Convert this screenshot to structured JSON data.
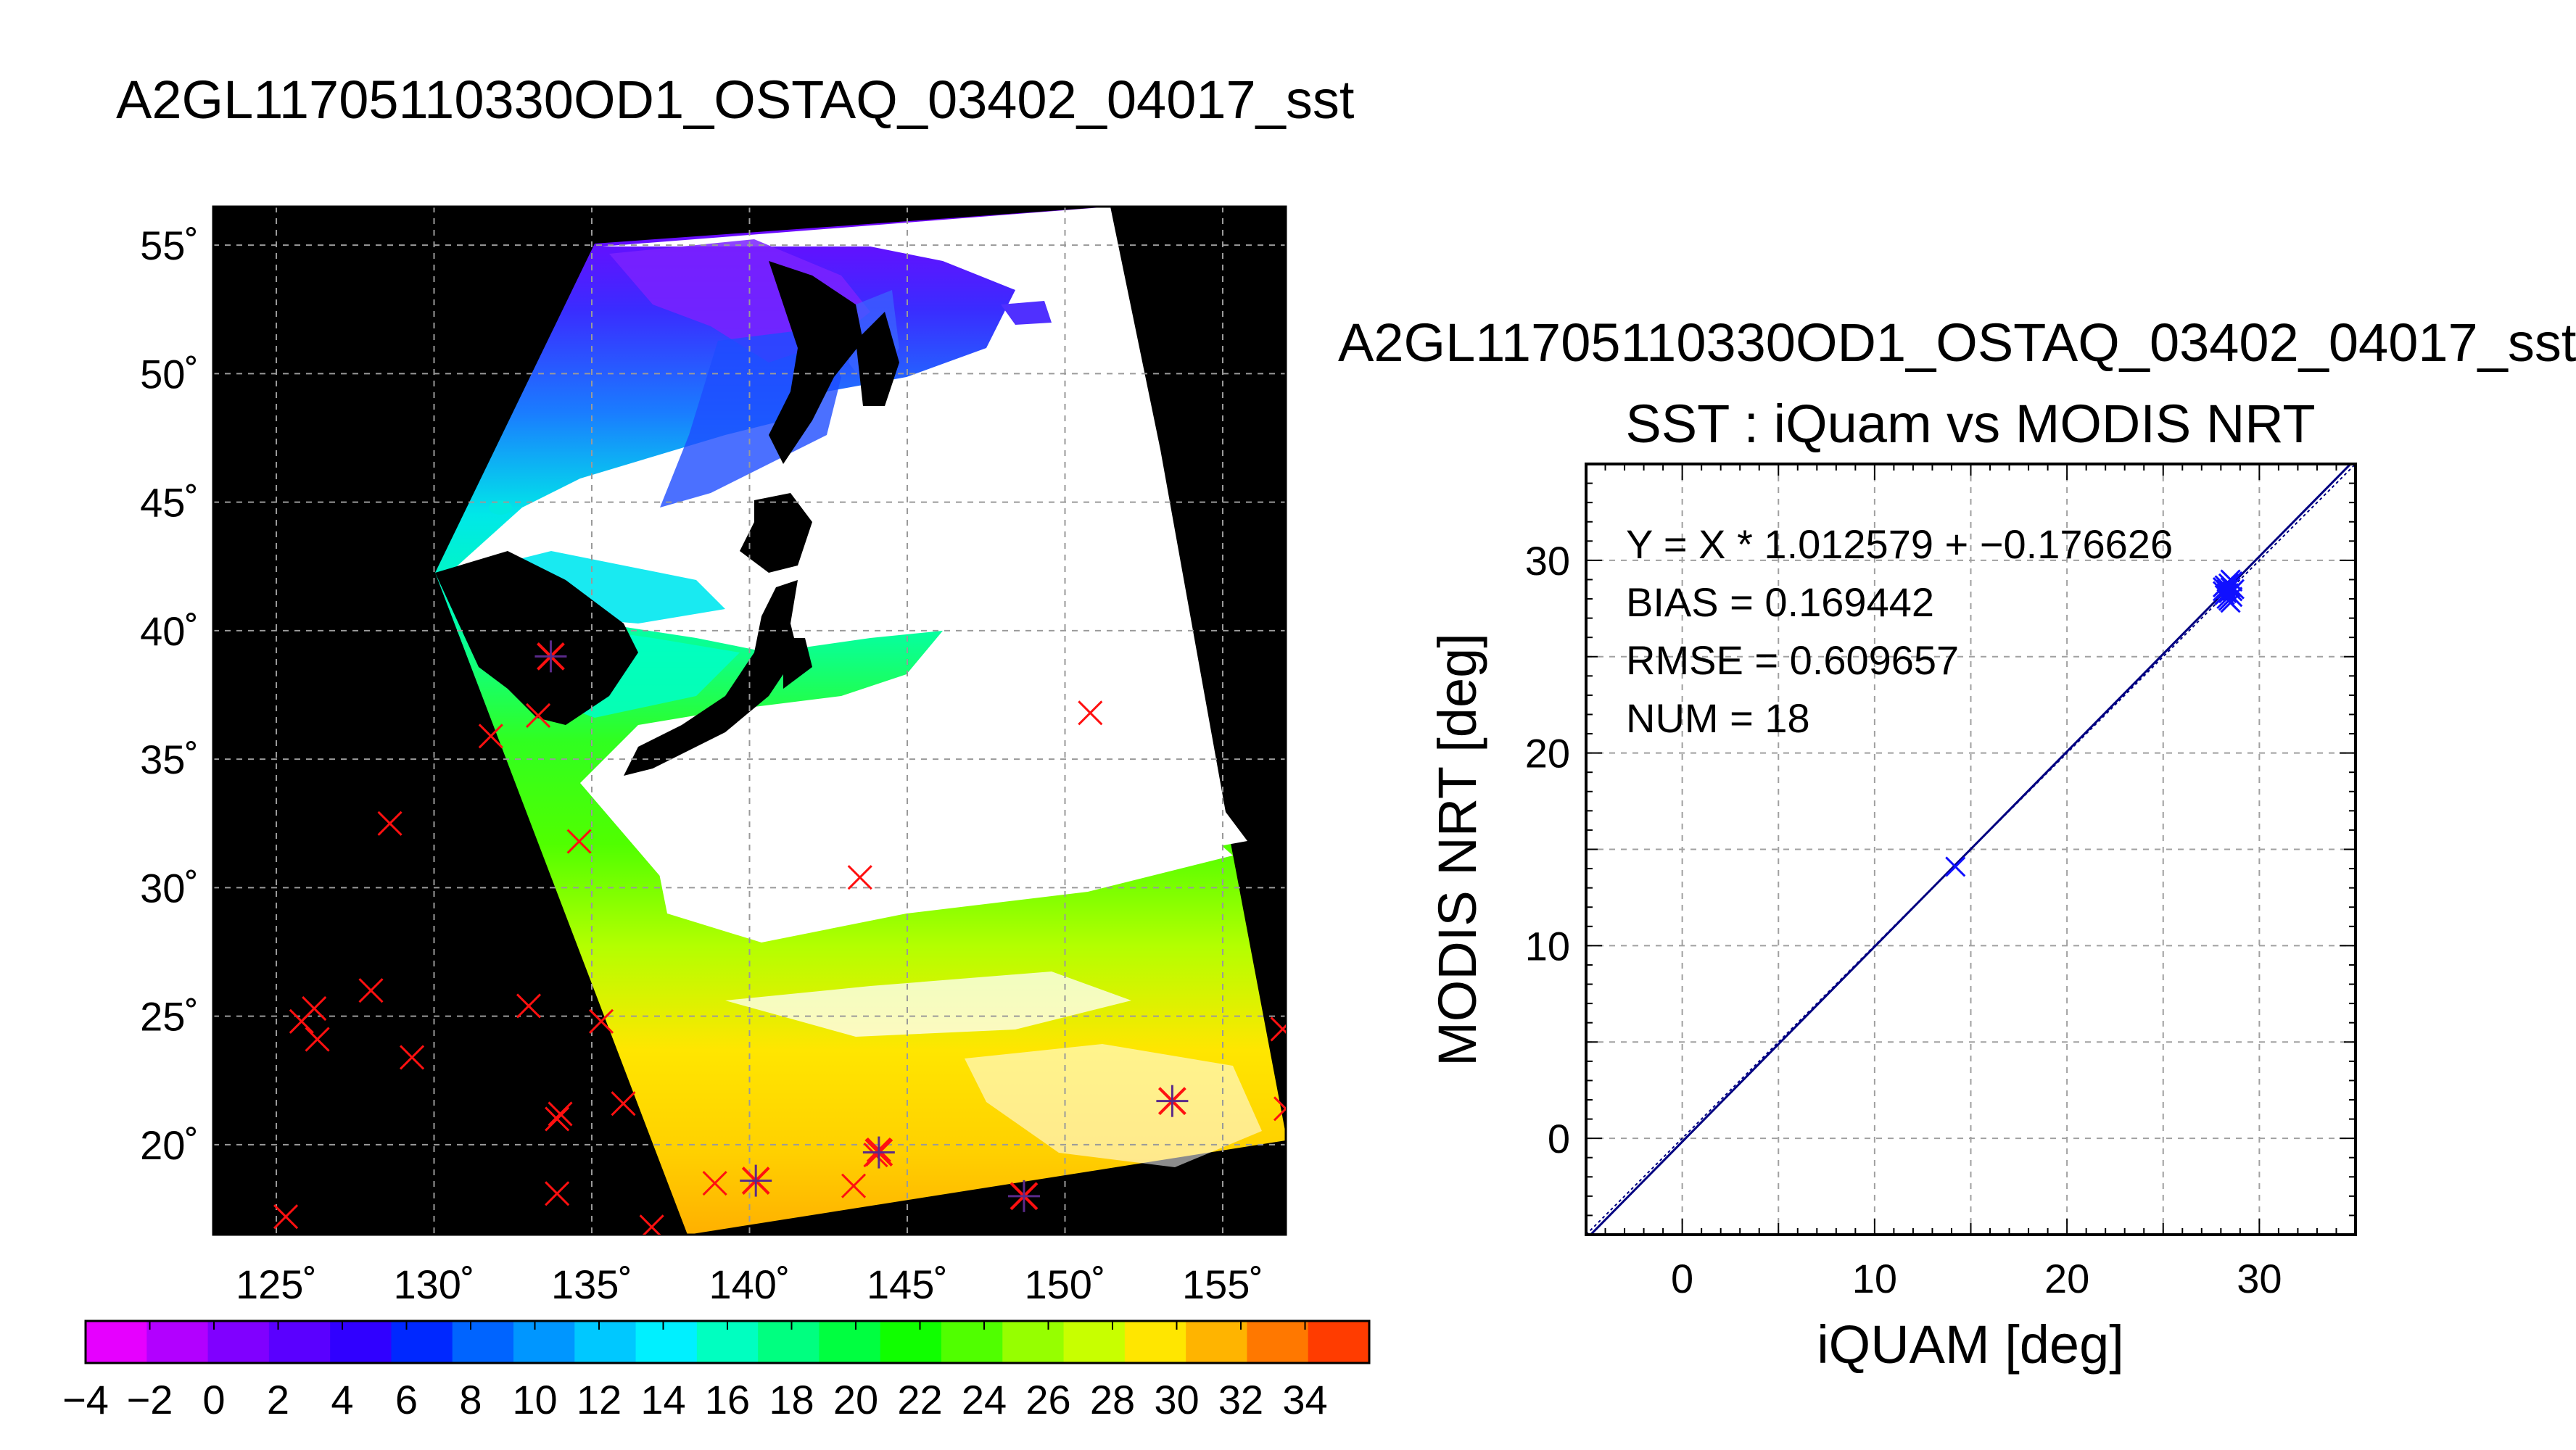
{
  "figure": {
    "title": "A2GL11705110330OD1_OSTAQ_03402_04017_sst"
  },
  "map": {
    "lon_ticks": [
      "125˚",
      "130˚",
      "135˚",
      "140˚",
      "145˚",
      "150˚",
      "155˚"
    ],
    "lat_ticks": [
      "55˚",
      "50˚",
      "45˚",
      "40˚",
      "35˚",
      "30˚",
      "25˚",
      "20˚"
    ],
    "colors": {
      "background": "#000000",
      "cloud": "#ffffff",
      "land": "#000000",
      "grid": "#9a9a9a",
      "insitu_marker": "#ff1010",
      "matchup_marker": "#3030ff"
    }
  },
  "colorbar": {
    "tick_labels": [
      "−4",
      "−2",
      "0",
      "2",
      "4",
      "6",
      "8",
      "10",
      "12",
      "14",
      "16",
      "18",
      "20",
      "22",
      "24",
      "26",
      "28",
      "30",
      "32",
      "34"
    ],
    "colors": [
      "#e600ff",
      "#b200ff",
      "#8000ff",
      "#5a00ff",
      "#3000ff",
      "#0028ff",
      "#0064ff",
      "#0096ff",
      "#00c8ff",
      "#00f0ff",
      "#00ffc0",
      "#00ff80",
      "#00ff40",
      "#10ff00",
      "#50ff00",
      "#96ff00",
      "#c8ff00",
      "#ffe600",
      "#ffb400",
      "#ff7800",
      "#ff3c00"
    ]
  },
  "scatter": {
    "file_title": "A2GL11705110330OD1_OSTAQ_03402_04017_sst",
    "stats": [
      "Y = X * 1.012579 + −0.176626",
      "BIAS = 0.169442",
      "RMSE = 0.609657",
      "NUM = 18"
    ],
    "colors": {
      "points": "#1010ff",
      "fit_line": "#000080"
    }
  },
  "chart_data": [
    {
      "type": "heatmap",
      "title": "",
      "xlabel": "",
      "ylabel": "",
      "xlim": [
        123,
        157
      ],
      "ylim": [
        16.5,
        56.5
      ],
      "colorbar_range": [
        -4,
        36
      ],
      "grid": true,
      "insitu_points": [
        {
          "lon": 125.3,
          "lat": 17.2
        },
        {
          "lon": 125.8,
          "lat": 24.8
        },
        {
          "lon": 126.2,
          "lat": 25.3
        },
        {
          "lon": 126.3,
          "lat": 24.1
        },
        {
          "lon": 128.0,
          "lat": 26.0
        },
        {
          "lon": 128.6,
          "lat": 32.5
        },
        {
          "lon": 129.3,
          "lat": 23.4
        },
        {
          "lon": 131.8,
          "lat": 35.9
        },
        {
          "lon": 133.0,
          "lat": 25.4
        },
        {
          "lon": 133.3,
          "lat": 36.7
        },
        {
          "lon": 134.0,
          "lat": 21.2
        },
        {
          "lon": 133.9,
          "lat": 21.0
        },
        {
          "lon": 133.9,
          "lat": 18.1
        },
        {
          "lon": 134.6,
          "lat": 31.8
        },
        {
          "lon": 135.3,
          "lat": 24.8
        },
        {
          "lon": 136.0,
          "lat": 21.6
        },
        {
          "lon": 136.9,
          "lat": 16.8
        },
        {
          "lon": 138.9,
          "lat": 18.5
        },
        {
          "lon": 140.2,
          "lat": 18.6
        },
        {
          "lon": 143.3,
          "lat": 18.4
        },
        {
          "lon": 143.5,
          "lat": 30.4
        },
        {
          "lon": 144.0,
          "lat": 19.6
        },
        {
          "lon": 144.1,
          "lat": 19.8
        },
        {
          "lon": 148.7,
          "lat": 18.0
        },
        {
          "lon": 150.8,
          "lat": 36.8
        },
        {
          "lon": 153.4,
          "lat": 21.7
        },
        {
          "lon": 156.9,
          "lat": 24.5
        },
        {
          "lon": 157.0,
          "lat": 21.4
        }
      ],
      "matchup_points": [
        {
          "lon": 133.7,
          "lat": 39.0
        },
        {
          "lon": 140.2,
          "lat": 18.6
        },
        {
          "lon": 144.1,
          "lat": 19.7
        },
        {
          "lon": 148.7,
          "lat": 18.0
        },
        {
          "lon": 153.4,
          "lat": 21.7
        }
      ]
    },
    {
      "type": "scatter",
      "title": "SST : iQuam vs MODIS NRT",
      "xlabel": "iQUAM [deg]",
      "ylabel": "MODIS NRT [deg]",
      "xlim": [
        -5,
        35
      ],
      "ylim": [
        -5,
        35
      ],
      "x_ticks": [
        0,
        10,
        20,
        30
      ],
      "y_ticks": [
        0,
        10,
        20,
        30
      ],
      "grid": true,
      "points": [
        {
          "x": 14.2,
          "y": 14.1
        },
        {
          "x": 28.1,
          "y": 28.4
        },
        {
          "x": 28.2,
          "y": 28.7
        },
        {
          "x": 28.3,
          "y": 28.5
        },
        {
          "x": 28.4,
          "y": 28.3
        },
        {
          "x": 28.5,
          "y": 28.6
        },
        {
          "x": 28.2,
          "y": 28.2
        },
        {
          "x": 28.6,
          "y": 28.9
        },
        {
          "x": 28.3,
          "y": 28.0
        },
        {
          "x": 28.4,
          "y": 27.9
        },
        {
          "x": 28.5,
          "y": 27.8
        },
        {
          "x": 28.6,
          "y": 28.1
        },
        {
          "x": 28.7,
          "y": 28.5
        },
        {
          "x": 28.1,
          "y": 28.6
        },
        {
          "x": 28.5,
          "y": 29.0
        },
        {
          "x": 28.4,
          "y": 28.8
        },
        {
          "x": 28.3,
          "y": 28.3
        },
        {
          "x": 28.6,
          "y": 28.4
        }
      ],
      "fit": {
        "slope": 1.012579,
        "intercept": -0.176626
      },
      "one_to_one": true
    }
  ]
}
